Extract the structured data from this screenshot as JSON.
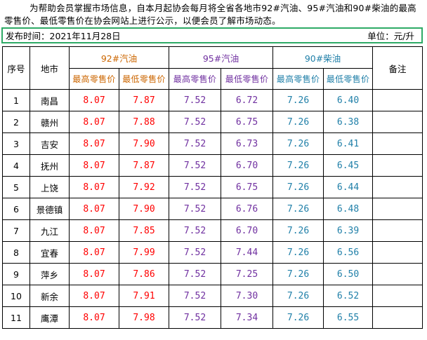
{
  "intro": "为帮助会员掌握市场信息，自本月起协会每月将全省各地市92#汽油、95#汽油和90#柴油的最高零售价、最低零售价在协会网站上进行公示，以便会员了解市场动态。",
  "publish_time": "发布时间：2021年11月28日",
  "unit": "单位：元/升",
  "headers": {
    "index": "序号",
    "city": "地市",
    "gas92": "92#汽油",
    "gas95": "95#汽油",
    "diesel90": "90#柴油",
    "remark": "备注",
    "max_price": "最高零售价",
    "min_price": "最低零售价"
  },
  "colors": {
    "border_green": "#2eaa66",
    "gas92_header": "#cc6600",
    "gas92_values": "#ff0000",
    "gas95": "#7030a0",
    "diesel90": "#1f7fa8"
  },
  "rows": [
    {
      "idx": "1",
      "city": "南昌",
      "g92max": "8.07",
      "g92min": "7.87",
      "g95max": "7.52",
      "g95min": "6.72",
      "d90max": "7.26",
      "d90min": "6.40",
      "remark": ""
    },
    {
      "idx": "2",
      "city": "赣州",
      "g92max": "8.07",
      "g92min": "7.88",
      "g95max": "7.52",
      "g95min": "6.75",
      "d90max": "7.26",
      "d90min": "6.38",
      "remark": ""
    },
    {
      "idx": "3",
      "city": "吉安",
      "g92max": "8.07",
      "g92min": "7.90",
      "g95max": "7.52",
      "g95min": "6.73",
      "d90max": "7.26",
      "d90min": "6.41",
      "remark": ""
    },
    {
      "idx": "4",
      "city": "抚州",
      "g92max": "8.07",
      "g92min": "7.87",
      "g95max": "7.52",
      "g95min": "6.70",
      "d90max": "7.26",
      "d90min": "6.45",
      "remark": ""
    },
    {
      "idx": "5",
      "city": "上饶",
      "g92max": "8.07",
      "g92min": "7.92",
      "g95max": "7.52",
      "g95min": "6.75",
      "d90max": "7.26",
      "d90min": "6.44",
      "remark": ""
    },
    {
      "idx": "6",
      "city": "景德镇",
      "g92max": "8.07",
      "g92min": "7.90",
      "g95max": "7.52",
      "g95min": "6.76",
      "d90max": "7.26",
      "d90min": "6.48",
      "remark": ""
    },
    {
      "idx": "7",
      "city": "九江",
      "g92max": "8.07",
      "g92min": "7.85",
      "g95max": "7.52",
      "g95min": "6.70",
      "d90max": "7.26",
      "d90min": "6.39",
      "remark": ""
    },
    {
      "idx": "8",
      "city": "宜春",
      "g92max": "8.07",
      "g92min": "7.99",
      "g95max": "7.52",
      "g95min": "7.44",
      "d90max": "7.26",
      "d90min": "6.56",
      "remark": ""
    },
    {
      "idx": "9",
      "city": "萍乡",
      "g92max": "8.07",
      "g92min": "7.86",
      "g95max": "7.52",
      "g95min": "7.25",
      "d90max": "7.26",
      "d90min": "6.50",
      "remark": ""
    },
    {
      "idx": "10",
      "city": "新余",
      "g92max": "8.07",
      "g92min": "7.91",
      "g95max": "7.52",
      "g95min": "7.30",
      "d90max": "7.26",
      "d90min": "6.52",
      "remark": ""
    },
    {
      "idx": "11",
      "city": "鹰潭",
      "g92max": "8.07",
      "g92min": "7.98",
      "g95max": "7.52",
      "g95min": "7.34",
      "d90max": "7.26",
      "d90min": "6.55",
      "remark": ""
    }
  ]
}
